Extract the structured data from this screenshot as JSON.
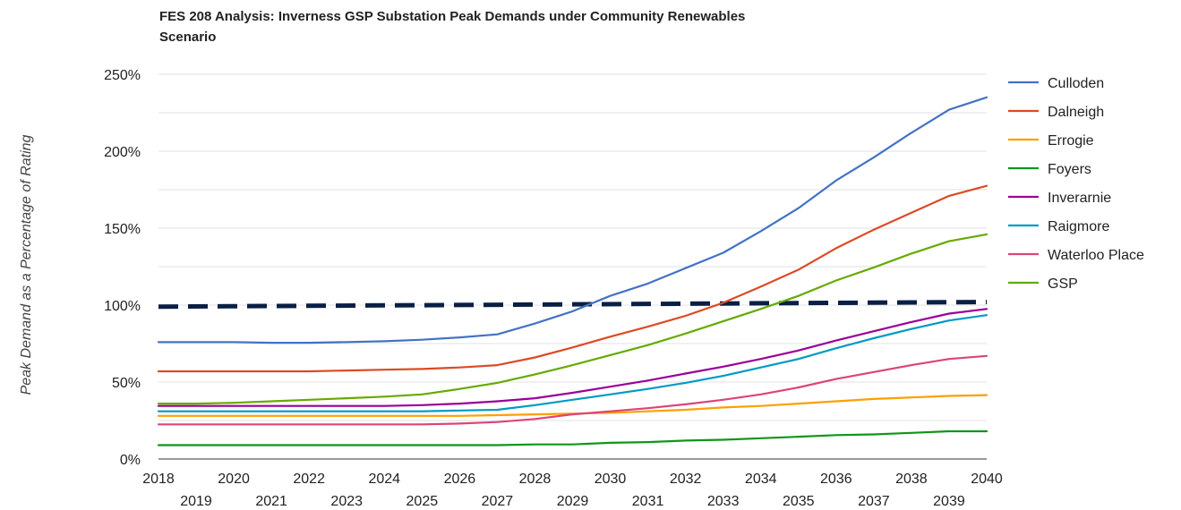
{
  "chart_data": {
    "type": "line",
    "title_lines": [
      "FES 208 Analysis: Inverness GSP Substation Peak Demands under Community Renewables",
      "Scenario"
    ],
    "ylabel": "Peak Demand as a Percentage of Rating",
    "xlabel": "",
    "x": [
      2018,
      2019,
      2020,
      2021,
      2022,
      2023,
      2024,
      2025,
      2026,
      2027,
      2028,
      2029,
      2030,
      2031,
      2032,
      2033,
      2034,
      2035,
      2036,
      2037,
      2038,
      2039,
      2040
    ],
    "x_tick_labels_row1": [
      "2018",
      "2020",
      "2022",
      "2024",
      "2026",
      "2028",
      "2030",
      "2032",
      "2034",
      "2036",
      "2038",
      "2040"
    ],
    "x_tick_labels_row2": [
      "2019",
      "2021",
      "2023",
      "2025",
      "2027",
      "2029",
      "2031",
      "2033",
      "2035",
      "2037",
      "2039"
    ],
    "y_ticks": [
      {
        "value": 0,
        "label": "0%"
      },
      {
        "value": 50,
        "label": "50%"
      },
      {
        "value": 100,
        "label": "100%"
      },
      {
        "value": 150,
        "label": "150%"
      },
      {
        "value": 200,
        "label": "200%"
      },
      {
        "value": 250,
        "label": "250%"
      }
    ],
    "y_minor_gridlines": [
      25,
      75,
      125,
      175,
      225
    ],
    "ylim": [
      0,
      250
    ],
    "grid": true,
    "legend_position": "right",
    "series": [
      {
        "name": "Culloden",
        "color": "#4472c4",
        "values": [
          76,
          76,
          76,
          75.5,
          75.5,
          76,
          76.5,
          77.5,
          79,
          81,
          88,
          96,
          106,
          114,
          124,
          134,
          148,
          163,
          181,
          196,
          212,
          227,
          235
        ]
      },
      {
        "name": "Dalneigh",
        "color": "#dc4a24",
        "values": [
          57,
          57,
          57,
          57,
          57,
          57.5,
          58,
          58.5,
          59.5,
          61,
          66,
          72.5,
          79.5,
          86,
          93,
          101.5,
          112,
          123,
          137,
          149,
          160,
          171,
          177.5
        ]
      },
      {
        "name": "Errogie",
        "color": "#ff9f00",
        "values": [
          28,
          28,
          28,
          28,
          28,
          28,
          28,
          28,
          28,
          28.5,
          29,
          29.5,
          30,
          31,
          32,
          33.5,
          34.5,
          36,
          37.5,
          39,
          40,
          41,
          41.5
        ]
      },
      {
        "name": "Foyers",
        "color": "#109618",
        "values": [
          9,
          9,
          9,
          9,
          9,
          9,
          9,
          9,
          9,
          9,
          9.5,
          9.5,
          10.5,
          11,
          12,
          12.5,
          13.5,
          14.5,
          15.5,
          16,
          17,
          18,
          18
        ]
      },
      {
        "name": "Inverarnie",
        "color": "#990099",
        "values": [
          34.5,
          34.5,
          34.5,
          34.5,
          34.5,
          34.5,
          34.5,
          35,
          36,
          37.5,
          39.5,
          43,
          47,
          51,
          55.5,
          60,
          65,
          70.5,
          77,
          83,
          89,
          94.5,
          97.5
        ]
      },
      {
        "name": "Raigmore",
        "color": "#0099c6",
        "values": [
          31,
          31,
          31,
          31,
          31,
          31,
          31,
          31,
          31.5,
          32,
          35,
          38.5,
          42,
          45.5,
          49.5,
          54,
          59.5,
          65,
          72,
          78.5,
          84.5,
          90,
          93.5
        ]
      },
      {
        "name": "Waterloo Place",
        "color": "#dd4477",
        "values": [
          22.5,
          22.5,
          22.5,
          22.5,
          22.5,
          22.5,
          22.5,
          22.5,
          23,
          24,
          26,
          29,
          31,
          33,
          35.5,
          38.5,
          42,
          46.5,
          52,
          56.5,
          61,
          65,
          67
        ]
      },
      {
        "name": "GSP",
        "color": "#66aa00",
        "values": [
          36,
          36,
          36.5,
          37.5,
          38.5,
          39.5,
          40.5,
          42,
          45.5,
          49.5,
          55,
          61,
          67.5,
          74,
          81.5,
          89.5,
          97.5,
          106,
          116,
          124.5,
          133.5,
          141.5,
          146
        ]
      }
    ],
    "rating_line": {
      "color": "#0a1f44",
      "values_start_end": [
        99,
        102
      ]
    }
  }
}
